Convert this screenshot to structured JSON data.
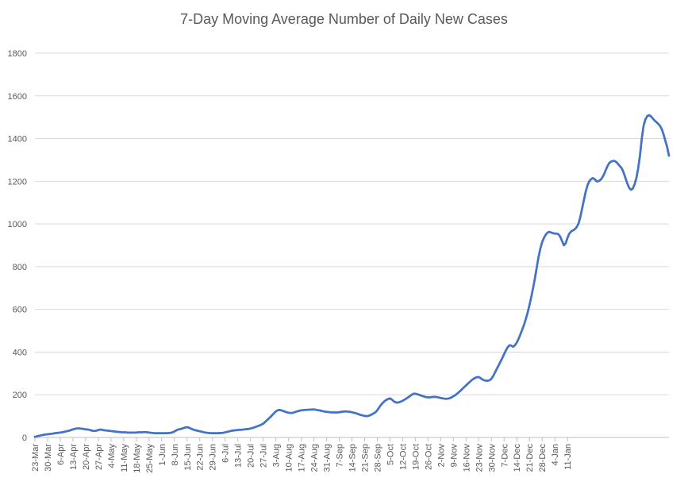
{
  "chart_data": {
    "type": "line",
    "title": "7-Day Moving Average Number of Daily New Cases",
    "xlabel": "",
    "ylabel": "",
    "ylim": [
      0,
      1800
    ],
    "yticks": [
      0,
      200,
      400,
      600,
      800,
      1000,
      1200,
      1400,
      1600,
      1800
    ],
    "grid": true,
    "legend": "none",
    "line_color": "#4472C4",
    "x_tick_labels": [
      "23-Mar",
      "30-Mar",
      "6-Apr",
      "13-Apr",
      "20-Apr",
      "27-Apr",
      "4-May",
      "11-May",
      "18-May",
      "25-May",
      "1-Jun",
      "8-Jun",
      "15-Jun",
      "22-Jun",
      "29-Jun",
      "6-Jul",
      "13-Jul",
      "20-Jul",
      "27-Jul",
      "3-Aug",
      "10-Aug",
      "17-Aug",
      "24-Aug",
      "31-Aug",
      "7-Sep",
      "14-Sep",
      "21-Sep",
      "28-Sep",
      "5-Oct",
      "12-Oct",
      "19-Oct",
      "26-Oct",
      "2-Nov",
      "9-Nov",
      "16-Nov",
      "23-Nov",
      "30-Nov",
      "7-Dec",
      "14-Dec",
      "21-Dec",
      "28-Dec",
      "4-Jan",
      "11-Jan"
    ],
    "start_date": "23-Mar",
    "series": [
      {
        "values": [
          3,
          5,
          7,
          9,
          11,
          13,
          14,
          15,
          16,
          17,
          18,
          20,
          21,
          22,
          23,
          24,
          26,
          28,
          30,
          32,
          35,
          38,
          40,
          42,
          43,
          42,
          41,
          40,
          38,
          37,
          36,
          33,
          31,
          30,
          32,
          35,
          37,
          36,
          34,
          33,
          32,
          31,
          30,
          29,
          28,
          27,
          26,
          25,
          24,
          24,
          24,
          23,
          23,
          23,
          23,
          23,
          23,
          24,
          24,
          24,
          25,
          25,
          24,
          23,
          22,
          21,
          20,
          20,
          20,
          20,
          20,
          20,
          20,
          20,
          21,
          22,
          24,
          28,
          33,
          37,
          39,
          41,
          44,
          47,
          48,
          46,
          42,
          38,
          35,
          33,
          31,
          29,
          27,
          25,
          23,
          22,
          21,
          20,
          20,
          20,
          20,
          20,
          21,
          21,
          22,
          24,
          26,
          28,
          30,
          32,
          33,
          34,
          35,
          36,
          36,
          37,
          38,
          39,
          40,
          42,
          44,
          47,
          50,
          53,
          56,
          60,
          65,
          72,
          80,
          88,
          96,
          105,
          114,
          122,
          127,
          129,
          127,
          124,
          121,
          118,
          116,
          115,
          115,
          117,
          120,
          123,
          125,
          127,
          128,
          129,
          129,
          130,
          130,
          131,
          131,
          130,
          128,
          127,
          125,
          123,
          121,
          120,
          119,
          118,
          117,
          117,
          117,
          117,
          118,
          120,
          121,
          122,
          122,
          121,
          120,
          118,
          116,
          114,
          111,
          108,
          105,
          103,
          101,
          100,
          101,
          104,
          108,
          113,
          118,
          128,
          140,
          152,
          162,
          170,
          176,
          180,
          183,
          178,
          170,
          165,
          163,
          165,
          168,
          172,
          177,
          182,
          188,
          194,
          200,
          205,
          205,
          203,
          200,
          197,
          194,
          191,
          189,
          188,
          188,
          189,
          190,
          190,
          189,
          187,
          185,
          183,
          182,
          181,
          182,
          184,
          188,
          193,
          198,
          205,
          212,
          220,
          228,
          236,
          244,
          252,
          260,
          268,
          274,
          279,
          282,
          283,
          278,
          272,
          268,
          266,
          266,
          268,
          275,
          288,
          305,
          322,
          338,
          355,
          372,
          390,
          408,
          423,
          432,
          430,
          425,
          432,
          445,
          462,
          483,
          505,
          528,
          555,
          585,
          620,
          658,
          700,
          745,
          795,
          845,
          885,
          915,
          935,
          950,
          960,
          963,
          960,
          957,
          955,
          955,
          952,
          940,
          920,
          900,
          910,
          935,
          955,
          965,
          970,
          975,
          985,
          1000,
          1030,
          1070,
          1110,
          1150,
          1180,
          1200,
          1210,
          1215,
          1210,
          1200,
          1200,
          1205,
          1215,
          1230,
          1250,
          1270,
          1285,
          1292,
          1295,
          1295,
          1290,
          1280,
          1270,
          1260,
          1240,
          1215,
          1190,
          1170,
          1160,
          1165,
          1185,
          1215,
          1260,
          1320,
          1400,
          1460,
          1490,
          1505,
          1510,
          1505,
          1495,
          1485,
          1478,
          1470,
          1460,
          1445,
          1420,
          1390,
          1360,
          1320
        ]
      }
    ]
  }
}
